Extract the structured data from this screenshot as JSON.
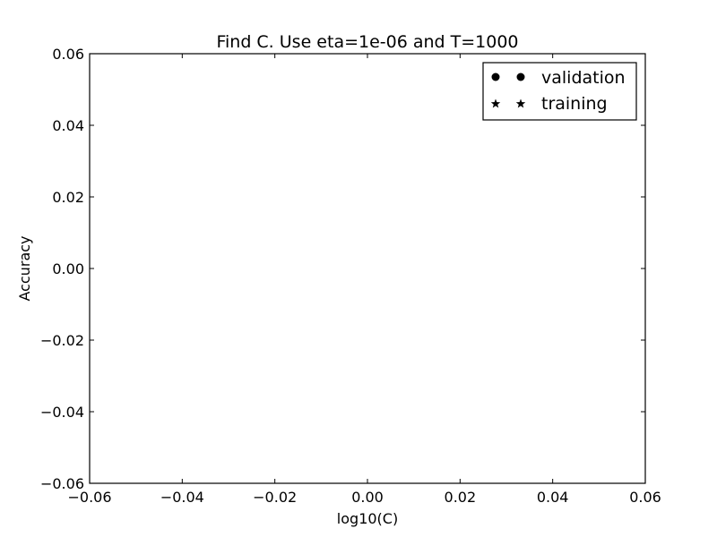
{
  "chart_data": {
    "type": "scatter",
    "title": "Find C. Use eta=1e-06 and T=1000",
    "xlabel": "log10(C)",
    "ylabel": "Accuracy",
    "xlim": [
      -0.06,
      0.06
    ],
    "ylim": [
      -0.06,
      0.06
    ],
    "x_ticks": [
      "−0.06",
      "−0.04",
      "−0.02",
      "0.00",
      "0.02",
      "0.04",
      "0.06"
    ],
    "y_ticks": [
      "−0.06",
      "−0.04",
      "−0.02",
      "0.00",
      "0.02",
      "0.04",
      "0.06"
    ],
    "grid": false,
    "legend_position": "top-right",
    "series": [
      {
        "name": "validation",
        "marker": "circle",
        "x": [],
        "y": []
      },
      {
        "name": "training",
        "marker": "star",
        "x": [],
        "y": []
      }
    ]
  }
}
